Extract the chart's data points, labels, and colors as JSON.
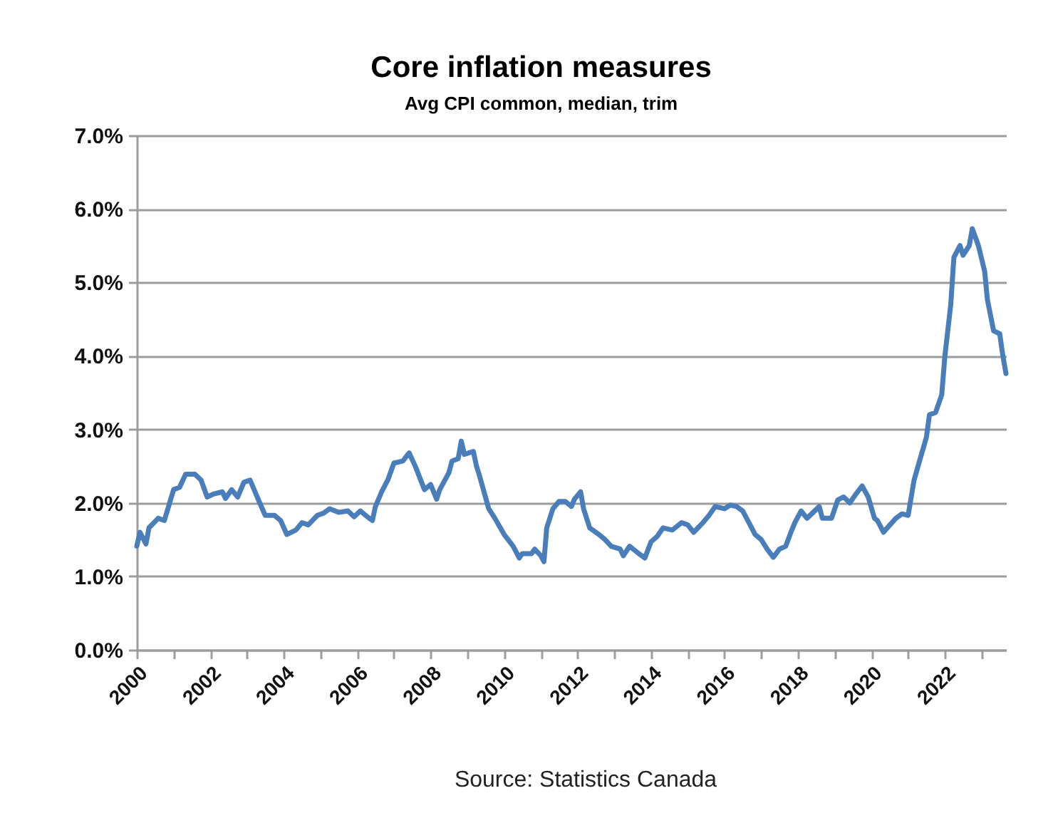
{
  "chart_data": {
    "type": "line",
    "title": "Core inflation measures",
    "subtitle": "Avg CPI common, median, trim",
    "annotations": [
      "Source: Statistics Canada"
    ],
    "x": [
      "2000-01",
      "2000-02",
      "2000-04",
      "2000-05",
      "2000-08",
      "2000-10",
      "2001-01",
      "2001-03",
      "2001-05",
      "2001-08",
      "2001-10",
      "2001-12",
      "2002-02",
      "2002-05",
      "2002-06",
      "2002-08",
      "2002-10",
      "2002-12",
      "2003-02",
      "2003-05",
      "2003-07",
      "2003-10",
      "2003-12",
      "2004-02",
      "2004-05",
      "2004-07",
      "2004-09",
      "2004-12",
      "2005-02",
      "2005-04",
      "2005-07",
      "2005-10",
      "2005-12",
      "2006-02",
      "2006-05",
      "2006-06",
      "2006-07",
      "2006-09",
      "2006-11",
      "2007-01",
      "2007-04",
      "2007-06",
      "2007-08",
      "2007-11",
      "2008-01",
      "2008-03",
      "2008-04",
      "2008-07",
      "2008-08",
      "2008-10",
      "2008-11",
      "2008-12",
      "2009-03",
      "2009-04",
      "2009-05",
      "2009-08",
      "2009-10",
      "2010-01",
      "2010-04",
      "2010-06",
      "2010-07",
      "2010-10",
      "2010-11",
      "2011-01",
      "2011-02",
      "2011-03",
      "2011-05",
      "2011-07",
      "2011-09",
      "2011-11",
      "2011-12",
      "2012-02",
      "2012-03",
      "2012-05",
      "2012-08",
      "2012-10",
      "2012-12",
      "2013-03",
      "2013-04",
      "2013-06",
      "2013-09",
      "2013-11",
      "2014-01",
      "2014-03",
      "2014-05",
      "2014-08",
      "2014-11",
      "2015-01",
      "2015-03",
      "2015-06",
      "2015-08",
      "2015-10",
      "2016-01",
      "2016-03",
      "2016-05",
      "2016-07",
      "2016-09",
      "2016-11",
      "2017-01",
      "2017-03",
      "2017-05",
      "2017-07",
      "2017-09",
      "2017-11",
      "2017-12",
      "2018-02",
      "2018-04",
      "2018-06",
      "2018-08",
      "2018-09",
      "2018-12",
      "2019-02",
      "2019-04",
      "2019-06",
      "2019-08",
      "2019-10",
      "2019-12",
      "2020-02",
      "2020-03",
      "2020-05",
      "2020-06",
      "2020-09",
      "2020-11",
      "2021-01",
      "2021-03",
      "2021-05",
      "2021-07",
      "2021-08",
      "2021-10",
      "2021-12",
      "2022-01",
      "2022-03",
      "2022-04",
      "2022-06",
      "2022-07",
      "2022-09",
      "2022-10",
      "2022-12",
      "2023-02",
      "2023-03",
      "2023-05",
      "2023-06",
      "2023-07",
      "2023-08",
      "2023-09"
    ],
    "series": [
      {
        "color": "#4a7ebb",
        "values": [
          1.41,
          1.6,
          1.44,
          1.66,
          1.79,
          1.76,
          2.18,
          2.21,
          2.39,
          2.39,
          2.31,
          2.08,
          2.12,
          2.15,
          2.06,
          2.18,
          2.08,
          2.28,
          2.31,
          2.02,
          1.83,
          1.83,
          1.76,
          1.57,
          1.63,
          1.73,
          1.7,
          1.83,
          1.86,
          1.92,
          1.87,
          1.89,
          1.81,
          1.89,
          1.79,
          1.76,
          1.95,
          2.15,
          2.31,
          2.54,
          2.57,
          2.68,
          2.5,
          2.18,
          2.25,
          2.05,
          2.18,
          2.41,
          2.57,
          2.6,
          2.84,
          2.66,
          2.7,
          2.5,
          2.37,
          1.92,
          1.79,
          1.57,
          1.41,
          1.25,
          1.31,
          1.31,
          1.37,
          1.28,
          1.2,
          1.66,
          1.92,
          2.02,
          2.02,
          1.95,
          2.05,
          2.15,
          1.92,
          1.66,
          1.57,
          1.5,
          1.41,
          1.37,
          1.28,
          1.41,
          1.31,
          1.25,
          1.47,
          1.54,
          1.66,
          1.63,
          1.73,
          1.7,
          1.6,
          1.73,
          1.83,
          1.95,
          1.92,
          1.97,
          1.95,
          1.89,
          1.73,
          1.57,
          1.5,
          1.37,
          1.26,
          1.37,
          1.41,
          1.63,
          1.73,
          1.89,
          1.79,
          1.87,
          1.95,
          1.79,
          1.79,
          2.04,
          2.08,
          2.0,
          2.12,
          2.23,
          2.08,
          1.79,
          1.76,
          1.6,
          1.65,
          1.79,
          1.85,
          1.83,
          2.31,
          2.6,
          2.89,
          3.2,
          3.23,
          3.47,
          3.99,
          4.7,
          5.34,
          5.5,
          5.37,
          5.5,
          5.73,
          5.5,
          5.15,
          4.76,
          4.34,
          4.32,
          4.3,
          4.0,
          3.76
        ]
      }
    ],
    "xlim": [
      "2000-01",
      "2023-09"
    ],
    "xticks": [
      {
        "value": "2000-01",
        "label": "2000"
      },
      {
        "value": "2001-01",
        "label": null
      },
      {
        "value": "2002-01",
        "label": "2002"
      },
      {
        "value": "2003-01",
        "label": null
      },
      {
        "value": "2004-01",
        "label": "2004"
      },
      {
        "value": "2005-01",
        "label": null
      },
      {
        "value": "2006-01",
        "label": "2006"
      },
      {
        "value": "2007-01",
        "label": null
      },
      {
        "value": "2008-01",
        "label": "2008"
      },
      {
        "value": "2009-01",
        "label": null
      },
      {
        "value": "2010-01",
        "label": "2010"
      },
      {
        "value": "2011-01",
        "label": null
      },
      {
        "value": "2012-01",
        "label": "2012"
      },
      {
        "value": "2013-01",
        "label": null
      },
      {
        "value": "2014-01",
        "label": "2014"
      },
      {
        "value": "2015-01",
        "label": null
      },
      {
        "value": "2016-01",
        "label": "2016"
      },
      {
        "value": "2017-01",
        "label": null
      },
      {
        "value": "2018-01",
        "label": "2018"
      },
      {
        "value": "2019-01",
        "label": null
      },
      {
        "value": "2020-01",
        "label": "2020"
      },
      {
        "value": "2021-01",
        "label": null
      },
      {
        "value": "2022-01",
        "label": "2022"
      },
      {
        "value": "2023-01",
        "label": null
      }
    ],
    "ylim": [
      0,
      7
    ],
    "yticks": [
      {
        "value": 0,
        "label": "0.0%"
      },
      {
        "value": 1,
        "label": "1.0%"
      },
      {
        "value": 2,
        "label": "2.0%"
      },
      {
        "value": 3,
        "label": "3.0%"
      },
      {
        "value": 4,
        "label": "4.0%"
      },
      {
        "value": 5,
        "label": "5.0%"
      },
      {
        "value": 6,
        "label": "6.0%"
      },
      {
        "value": 7,
        "label": "7.0%"
      }
    ],
    "grid": "y",
    "line_style": "solid"
  }
}
